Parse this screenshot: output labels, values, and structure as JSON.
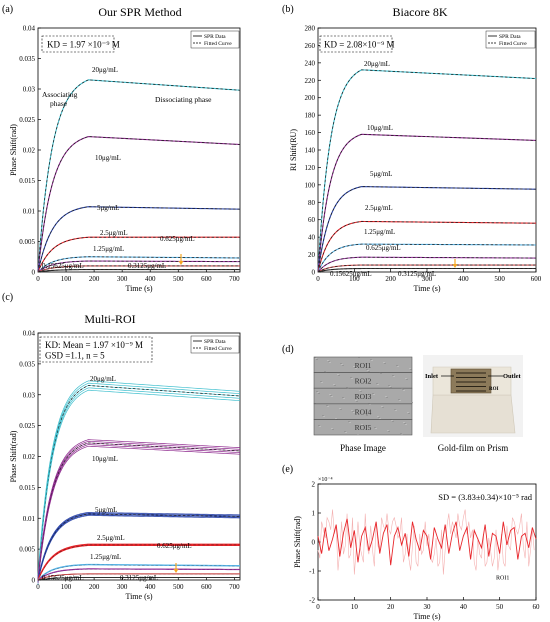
{
  "panels": [
    {
      "id": "a",
      "label": "(a)",
      "title": "Our SPR Method",
      "ylabel": "Phase Shift(rad)",
      "xlabel": "Time (s)",
      "box_lines": [
        "KD = 1.97 ×10⁻⁹ M"
      ],
      "legend": [
        "SPR Data",
        "Fitted Curve"
      ],
      "annotations": [
        "Associating",
        "phase",
        "Dissociating phase"
      ],
      "concentration_labels": [
        "20μg/mL",
        "10μg/mL",
        "5μg/mL",
        "2.5μg/mL",
        "1.25μg/mL",
        "0.625μg/mL",
        "0.15625μg/mL",
        "0.3125μg/mL"
      ],
      "xticks": [
        "0",
        "100",
        "200",
        "300",
        "400",
        "500",
        "600",
        "700"
      ],
      "yticks": [
        "0",
        "0.005",
        "0.01",
        "0.015",
        "0.02",
        "0.025",
        "0.03",
        "0.035",
        "0.04"
      ]
    },
    {
      "id": "b",
      "label": "(b)",
      "title": "Biacore 8K",
      "ylabel": "RI Shift(RU)",
      "xlabel": "Time (s)",
      "box_lines": [
        "KD = 2.08×10⁻⁹ M"
      ],
      "legend": [
        "SPR Data",
        "Fitted Curve"
      ],
      "concentration_labels": [
        "20μg/mL",
        "10μg/mL",
        "5μg/mL",
        "2.5μg/mL",
        "1.25μg/mL",
        "0.625μg/mL",
        "0.15625μg/mL",
        "0.3125μg/mL"
      ],
      "xticks": [
        "0",
        "100",
        "200",
        "300",
        "400",
        "500",
        "600"
      ],
      "yticks": [
        "0",
        "20",
        "40",
        "60",
        "80",
        "100",
        "120",
        "140",
        "160",
        "180",
        "200",
        "220",
        "240",
        "260",
        "280"
      ]
    },
    {
      "id": "c",
      "label": "(c)",
      "title": "Multi-ROI",
      "ylabel": "Phase Shift(rad)",
      "xlabel": "Time (s)",
      "box_lines": [
        "KD: Mean = 1.97 ×10⁻⁹ M",
        "GSD =1.1, n = 5"
      ],
      "legend": [
        "SPR Data",
        "Fitted Curve"
      ],
      "concentration_labels": [
        "20μg/mL",
        "10μg/mL",
        "5μg/mL",
        "2.5μg/mL",
        "1.25μg/mL",
        "0.625μg/mL",
        "0.15625μg/mL",
        "0.3125μg/mL"
      ],
      "xticks": [
        "0",
        "100",
        "200",
        "300",
        "400",
        "500",
        "600",
        "700"
      ],
      "yticks": [
        "0",
        "0.005",
        "0.01",
        "0.015",
        "0.02",
        "0.025",
        "0.03",
        "0.035",
        "0.04"
      ]
    },
    {
      "id": "d",
      "label": "(d)",
      "roi_labels": [
        "ROI1",
        "ROI2",
        "ROI3",
        "ROI4",
        "ROI5"
      ],
      "caption_left": "Phase Image",
      "caption_right": "Gold-film on Prism",
      "chip_labels": [
        "Inlet",
        "Outlet",
        "ROI"
      ]
    },
    {
      "id": "e",
      "label": "(e)",
      "ylabel": "Phase Shift(rad)",
      "xlabel": "Time (s)",
      "exponent": "×10⁻⁴",
      "sd_text": "SD = (3.83±0.34)×10⁻⁵ rad",
      "series_label": "ROI1",
      "xticks": [
        "0",
        "10",
        "20",
        "30",
        "40",
        "50",
        "60"
      ],
      "yticks": [
        "-2",
        "-1",
        "0",
        "1",
        "2"
      ]
    }
  ],
  "colors": {
    "c20": "#3fbfce",
    "c10": "#8e2a8e",
    "c5": "#2a44a8",
    "c2_5": "#e8262b",
    "c1_25": "#5ab4e6",
    "c0_625": "#9a3aa0",
    "c0_3125": "#c94b4b",
    "c0_15625": "#333333",
    "noise": "#e8262b",
    "arrow": "#f5a623"
  },
  "chart_data": [
    {
      "type": "line",
      "panel": "a",
      "xlim": [
        0,
        720
      ],
      "ylim": [
        0,
        0.04
      ],
      "assoc_end": 180,
      "series": [
        {
          "name": "20μg/mL",
          "peak": 0.0315,
          "end": 0.0298
        },
        {
          "name": "10μg/mL",
          "peak": 0.0222,
          "end": 0.0209
        },
        {
          "name": "5μg/mL",
          "peak": 0.0107,
          "end": 0.0103
        },
        {
          "name": "2.5μg/mL",
          "peak": 0.0057,
          "end": 0.0057
        },
        {
          "name": "1.25μg/mL",
          "peak": 0.0025,
          "end": 0.0023
        },
        {
          "name": "0.625μg/mL",
          "peak": 0.0018,
          "end": 0.0017
        },
        {
          "name": "0.3125μg/mL",
          "peak": 0.001,
          "end": 0.001
        },
        {
          "name": "0.15625μg/mL",
          "peak": 0.0004,
          "end": 0.0004
        }
      ]
    },
    {
      "type": "line",
      "panel": "b",
      "xlim": [
        0,
        600
      ],
      "ylim": [
        0,
        280
      ],
      "assoc_end": 120,
      "series": [
        {
          "name": "20μg/mL",
          "peak": 232,
          "end": 222
        },
        {
          "name": "10μg/mL",
          "peak": 158,
          "end": 151
        },
        {
          "name": "5μg/mL",
          "peak": 98,
          "end": 95
        },
        {
          "name": "2.5μg/mL",
          "peak": 58,
          "end": 56
        },
        {
          "name": "1.25μg/mL",
          "peak": 32,
          "end": 31
        },
        {
          "name": "0.625μg/mL",
          "peak": 17,
          "end": 16
        },
        {
          "name": "0.3125μg/mL",
          "peak": 8,
          "end": 8
        },
        {
          "name": "0.15625μg/mL",
          "peak": 4,
          "end": 4
        }
      ]
    },
    {
      "type": "line",
      "panel": "c",
      "xlim": [
        0,
        720
      ],
      "ylim": [
        0,
        0.04
      ],
      "assoc_end": 180,
      "series": [
        {
          "name": "20μg/mL",
          "peak": 0.0315,
          "end": 0.0298
        },
        {
          "name": "10μg/mL",
          "peak": 0.0222,
          "end": 0.0209
        },
        {
          "name": "5μg/mL",
          "peak": 0.0107,
          "end": 0.0103
        },
        {
          "name": "2.5μg/mL",
          "peak": 0.0057,
          "end": 0.0057
        },
        {
          "name": "1.25μg/mL",
          "peak": 0.0025,
          "end": 0.0023
        },
        {
          "name": "0.625μg/mL",
          "peak": 0.0018,
          "end": 0.0017
        },
        {
          "name": "0.3125μg/mL",
          "peak": 0.001,
          "end": 0.001
        },
        {
          "name": "0.15625μg/mL",
          "peak": 0.0004,
          "end": 0.0004
        }
      ]
    },
    {
      "type": "line",
      "panel": "e",
      "xlim": [
        0,
        60
      ],
      "ylim": [
        -2,
        2
      ],
      "series": [
        {
          "name": "ROI1",
          "y": [
            0.2,
            -0.4,
            0.5,
            -0.3,
            0.1,
            0.6,
            -0.5,
            0.3,
            0.8,
            -0.2,
            0.4,
            -0.7,
            0.2,
            0.5,
            -0.3,
            0.1,
            0.7,
            -0.4,
            0.3,
            0.6,
            -0.8,
            0.2,
            0.5,
            -0.1,
            0.3,
            -0.5,
            0.7,
            0.1,
            -0.3,
            0.4,
            0.2,
            -0.6,
            0.5,
            0.1,
            -0.2,
            0.6,
            -0.4,
            0.3,
            0.7,
            -0.3,
            0.2,
            0.5,
            -0.6,
            0.4,
            0.1,
            -0.2,
            0.6,
            -0.5,
            0.3,
            0.2,
            -0.4,
            0.7,
            -0.1,
            0.4,
            0.5,
            -0.6,
            0.2,
            0.3,
            -0.2,
            0.5,
            0.1
          ]
        }
      ]
    }
  ]
}
